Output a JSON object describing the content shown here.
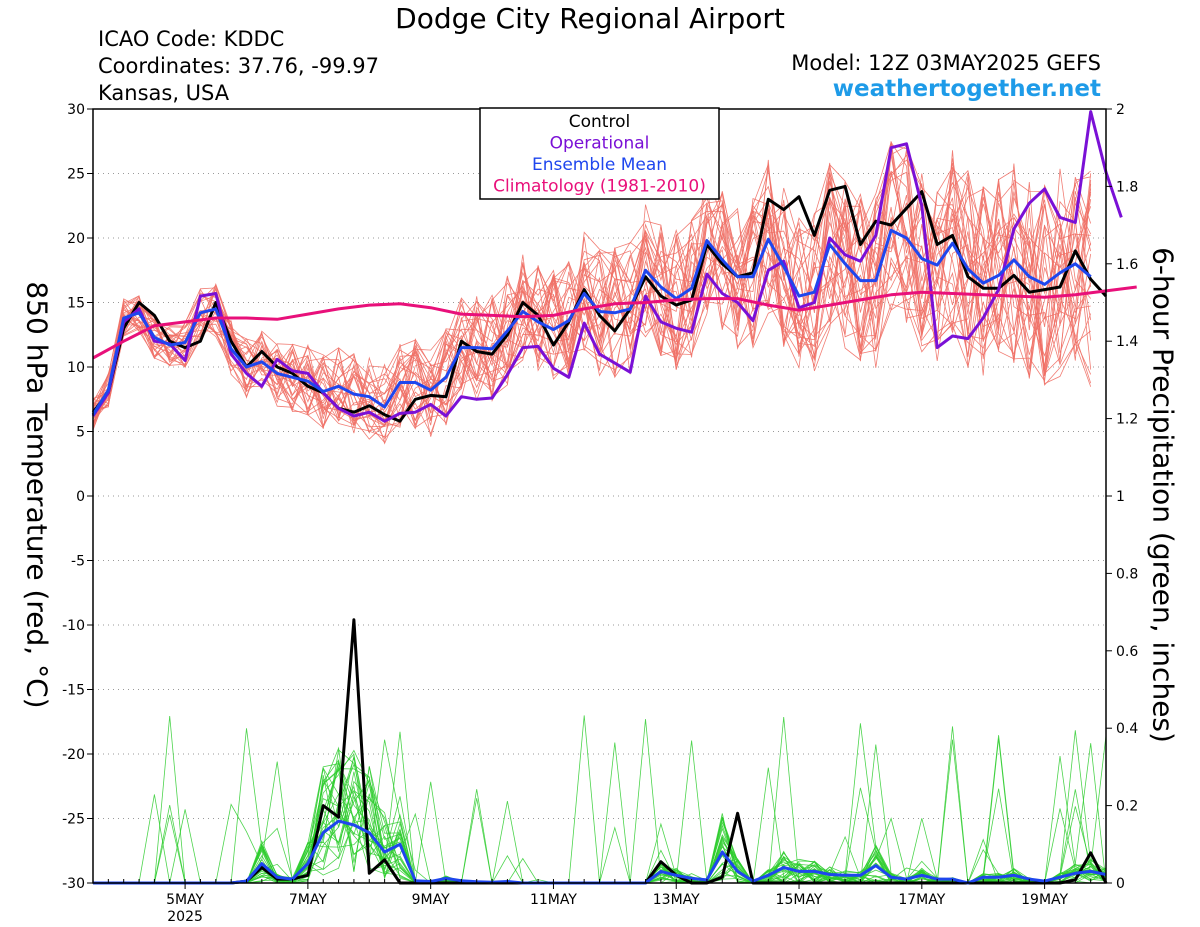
{
  "header": {
    "title": "Dodge City Regional Airport",
    "icao": "ICAO Code: KDDC",
    "coordinates": "Coordinates: 37.76, -99.97",
    "location": "Kansas, USA",
    "model": "Model: 12Z 03MAY2025 GEFS",
    "website": "weathertogether.net"
  },
  "axes": {
    "left_label": "850 hPa Temperature (red, °C)",
    "right_label": "6-hour Precipitation (green, inches)"
  },
  "colors": {
    "members_temp": "#f07066",
    "members_precip": "#2ecc2e",
    "control": "#000000",
    "operational": "#7a10d6",
    "ensemble_mean": "#1e46ee",
    "climatology": "#e8107a",
    "website": "#1e9be8"
  },
  "chart_data": {
    "type": "line",
    "x_unit": "6-hour steps from 12Z 03MAY2025",
    "x_start_label": "03MAY2025 12Z",
    "xlim": [
      0,
      66
    ],
    "x_ticks": [
      {
        "x": 6,
        "label": "5MAY",
        "sublabel": "2025"
      },
      {
        "x": 14,
        "label": "7MAY",
        "sublabel": ""
      },
      {
        "x": 22,
        "label": "9MAY",
        "sublabel": ""
      },
      {
        "x": 30,
        "label": "11MAY",
        "sublabel": ""
      },
      {
        "x": 38,
        "label": "13MAY",
        "sublabel": ""
      },
      {
        "x": 46,
        "label": "15MAY",
        "sublabel": ""
      },
      {
        "x": 54,
        "label": "17MAY",
        "sublabel": ""
      },
      {
        "x": 62,
        "label": "19MAY",
        "sublabel": ""
      }
    ],
    "y_left": {
      "range": [
        -30,
        30
      ],
      "ticks": [
        "30",
        "25",
        "20",
        "15",
        "10",
        "5",
        "0",
        "-5",
        "-10",
        "-15",
        "-20",
        "-25",
        "-30"
      ]
    },
    "y_right": {
      "range": [
        0,
        2
      ],
      "ticks": [
        "2",
        "1.8",
        "1.6",
        "1.4",
        "1.2",
        "1",
        "0.8",
        "0.6",
        "0.4",
        "0.2",
        "0"
      ]
    },
    "grid": true,
    "legend": {
      "position": "top-center",
      "entries": [
        {
          "label": "Control",
          "color": "#000000"
        },
        {
          "label": "Operational",
          "color": "#7a10d6"
        },
        {
          "label": "Ensemble Mean",
          "color": "#1e46ee"
        },
        {
          "label": "Climatology (1981-2010)",
          "color": "#e8107a"
        }
      ]
    },
    "series": [
      {
        "name": "Control",
        "axis": "left",
        "values": [
          6.5,
          8,
          13,
          15,
          14,
          12,
          11.5,
          12,
          15,
          12,
          10,
          11.2,
          10,
          9.5,
          8.5,
          8,
          6.8,
          6.5,
          7,
          6.3,
          5.8,
          7.5,
          7.8,
          7.7,
          12,
          11.2,
          11,
          12.5,
          15,
          14,
          11.7,
          13.5,
          16,
          14,
          12.8,
          14.5,
          17,
          15.5,
          14.8,
          15.2,
          19.5,
          18,
          17,
          17.3,
          23,
          22.2,
          23.2,
          20.2,
          23.7,
          24,
          19.5,
          21.3,
          21,
          22.3,
          23.6,
          19.5,
          20.2,
          17,
          16.1,
          16.1,
          17.1,
          15.8,
          16,
          16.2,
          19,
          16.8,
          15.5
        ]
      },
      {
        "name": "Operational",
        "axis": "left",
        "values": [
          6.2,
          8,
          13.5,
          14.5,
          12,
          11.8,
          10.5,
          15.5,
          15.7,
          11,
          9.5,
          8.5,
          10.6,
          9.7,
          9.5,
          8,
          6.8,
          6.2,
          6.5,
          5.8,
          6.4,
          6.5,
          7.1,
          6.2,
          7.7,
          7.5,
          7.6,
          9.4,
          11.5,
          11.6,
          9.9,
          9.2,
          13.4,
          11,
          10.3,
          9.6,
          15.5,
          13.5,
          13,
          12.7,
          17.2,
          15.7,
          15,
          13.6,
          17.5,
          18.2,
          14.6,
          15,
          20,
          18.7,
          18.2,
          20.2,
          27,
          27.3,
          22.5,
          11.5,
          12.4,
          12.2,
          13.8,
          16,
          20.7,
          22.7,
          23.8,
          21.6,
          21.2,
          29.8,
          25.1,
          21.6
        ]
      },
      {
        "name": "Ensemble Mean",
        "axis": "left",
        "values": [
          6.3,
          8.2,
          13.8,
          14.2,
          12.3,
          11.7,
          11.9,
          14.2,
          14.5,
          11.4,
          10,
          10.4,
          9.5,
          9.2,
          8.9,
          8.1,
          8.5,
          7.9,
          7.7,
          6.9,
          8.8,
          8.8,
          8.2,
          9.2,
          11.5,
          11.5,
          11.4,
          12.8,
          14.3,
          13.5,
          12.9,
          13.6,
          15.7,
          14.3,
          14.2,
          14.5,
          17.5,
          16.2,
          15.3,
          16.1,
          19.8,
          18.3,
          17,
          17,
          19.9,
          17.8,
          15.5,
          15.8,
          19.5,
          18,
          16.7,
          16.7,
          20.6,
          20,
          18.4,
          17.9,
          19.6,
          17.6,
          16.5,
          17.1,
          18.3,
          17,
          16.4,
          17.3,
          18,
          17
        ]
      },
      {
        "name": "Climatology (1981-2010)",
        "axis": "left",
        "values": [
          10.7,
          12,
          13.2,
          13.5,
          13.8,
          13.8,
          13.7,
          14.1,
          14.5,
          14.8,
          14.9,
          14.6,
          14.1,
          14.0,
          13.9,
          14.0,
          14.5,
          14.9,
          15.0,
          15.2,
          15.3,
          15.3,
          14.8,
          14.4,
          14.8,
          15.2,
          15.6,
          15.8,
          15.7,
          15.6,
          15.5,
          15.4,
          15.6,
          15.9,
          16.2
        ]
      },
      {
        "name": "Control",
        "axis": "right",
        "values": [
          0,
          0,
          0,
          0,
          0,
          0,
          0,
          0,
          0,
          0,
          0.005,
          0.04,
          0.01,
          0.01,
          0.02,
          0.2,
          0.17,
          0.68,
          0.025,
          0.06,
          0,
          0,
          0,
          0,
          0,
          0,
          0,
          0,
          0,
          0,
          0,
          0,
          0,
          0,
          0,
          0,
          0,
          0.055,
          0.02,
          0,
          0,
          0.015,
          0.18,
          0,
          0,
          0,
          0,
          0,
          0,
          0,
          0,
          0,
          0,
          0,
          0,
          0,
          0,
          0,
          0,
          0,
          0,
          0,
          0,
          0,
          0.008,
          0.078,
          0
        ]
      },
      {
        "name": "Ensemble Mean",
        "axis": "right",
        "values": [
          0,
          0,
          0,
          0,
          0,
          0,
          0,
          0,
          0,
          0,
          0.005,
          0.05,
          0.015,
          0.01,
          0.05,
          0.13,
          0.16,
          0.15,
          0.13,
          0.08,
          0.1,
          0.006,
          0.004,
          0.012,
          0.006,
          0.003,
          0.002,
          0.004,
          0,
          0,
          0,
          0,
          0,
          0,
          0,
          0,
          0,
          0.03,
          0.02,
          0.012,
          0.008,
          0.08,
          0.03,
          0.005,
          0.02,
          0.04,
          0.03,
          0.03,
          0.022,
          0.02,
          0.02,
          0.045,
          0.015,
          0.01,
          0.02,
          0.01,
          0.01,
          0,
          0.015,
          0.015,
          0.02,
          0.01,
          0.005,
          0.015,
          0.025,
          0.03,
          0.022
        ]
      }
    ]
  }
}
